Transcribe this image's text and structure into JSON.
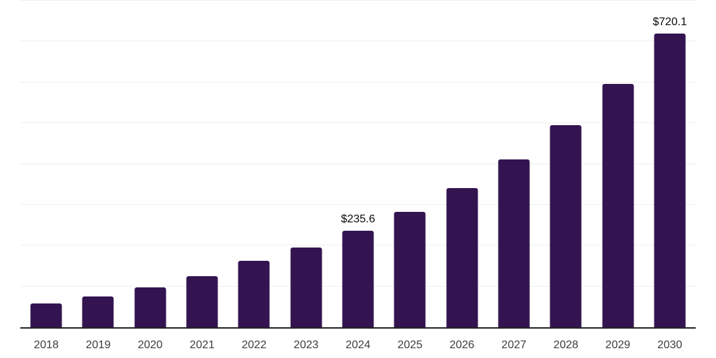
{
  "chart_data": {
    "type": "bar",
    "title": "",
    "xlabel": "",
    "ylabel": "",
    "categories": [
      "2018",
      "2019",
      "2020",
      "2021",
      "2022",
      "2023",
      "2024",
      "2025",
      "2026",
      "2027",
      "2028",
      "2029",
      "2030"
    ],
    "values": [
      58,
      75,
      97,
      125,
      162,
      196,
      235.6,
      283,
      341,
      411,
      495,
      597,
      720.1
    ],
    "point_labels": [
      null,
      null,
      null,
      null,
      null,
      null,
      "$235.6",
      null,
      null,
      null,
      null,
      null,
      "$720.1"
    ],
    "ylim": [
      0,
      800
    ],
    "ytick_interval": 100,
    "y_axis_tick_labels_visible": false,
    "grid": "horizontal",
    "legend": "none",
    "bar_color": "#331450",
    "value_label_color": "#0a0a0a",
    "axis_line_color": "#242424",
    "gridline_color": "#efefef",
    "xtick_label_color": "#3d3d3d"
  }
}
